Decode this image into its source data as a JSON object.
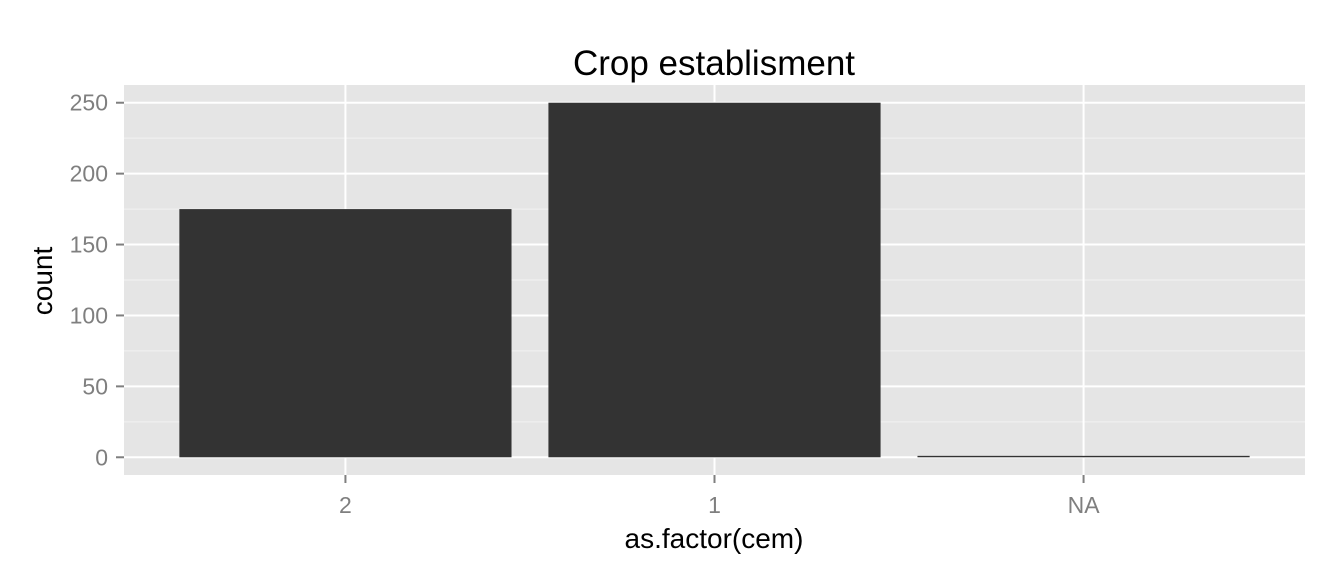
{
  "chart_data": {
    "type": "bar",
    "title": "Crop establisment",
    "xlabel": "as.factor(cem)",
    "ylabel": "count",
    "categories": [
      "2",
      "1",
      "NA"
    ],
    "values": [
      175,
      250,
      1
    ],
    "ylim": [
      -12.5,
      262.5
    ],
    "yticks": [
      0,
      50,
      100,
      150,
      200,
      250
    ],
    "yticklabels": [
      "0",
      "50",
      "100",
      "150",
      "200",
      "250"
    ],
    "grid": true,
    "legend": "none",
    "colors": {
      "panel_background": "#E5E5E5",
      "grid_major": "#FFFFFF",
      "grid_minor": "#F2F2F2",
      "bar_fill": "#333333",
      "tick_label": "#7F7F7F",
      "tick_mark": "#7F7F7F",
      "axis_title": "#000000",
      "title": "#000000"
    }
  }
}
